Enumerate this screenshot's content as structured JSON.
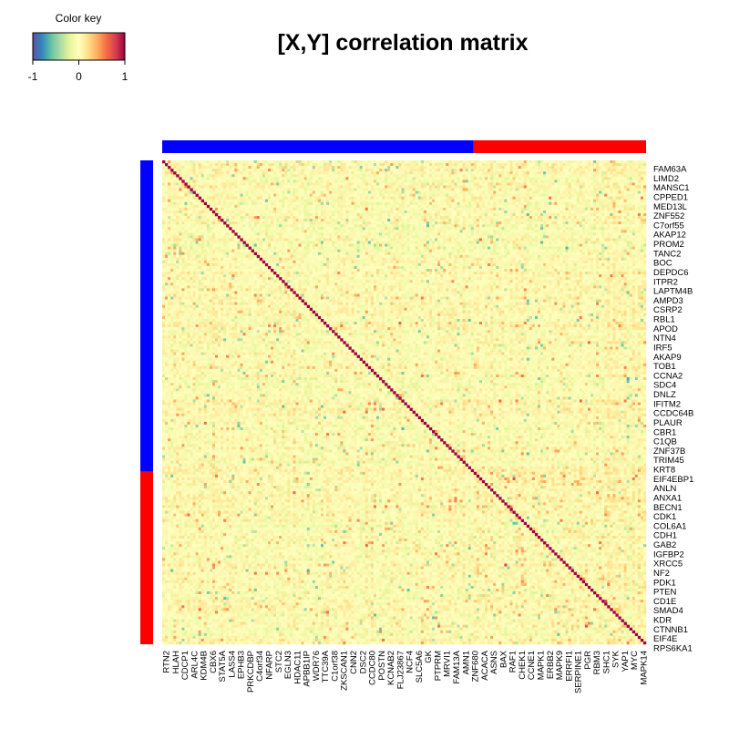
{
  "chart_data": {
    "type": "heatmap",
    "title": "[X,Y] correlation matrix",
    "color_key": {
      "title": "Color key",
      "ticks": [
        "-1",
        "0",
        "1"
      ],
      "range": [
        -1,
        1
      ],
      "palette": [
        "#5e4fa2",
        "#3288bd",
        "#66c2a5",
        "#abdda4",
        "#e6f598",
        "#ffffbf",
        "#fee08b",
        "#fdae61",
        "#f46d43",
        "#d53e4f",
        "#9e0142"
      ]
    },
    "group_colors": {
      "group_1": "#0000ff",
      "group_2": "#ff0000"
    },
    "group_sizes": [
      112,
      62
    ],
    "diagonal_value": 1,
    "row_labels": [
      "FAM63A",
      "LIMD2",
      "MANSC1",
      "CPPED1",
      "MED13L",
      "ZNF552",
      "C7orf55",
      "AKAP12",
      "PROM2",
      "TANC2",
      "BOC",
      "DEPDC6",
      "ITPR2",
      "LAPTM4B",
      "AMPD3",
      "CSRP2",
      "RBL1",
      "APOD",
      "NTN4",
      "IRF5",
      "AKAP9",
      "TOB1",
      "CCNA2",
      "SDC4",
      "DNLZ",
      "IFITM2",
      "CCDC64B",
      "PLAUR",
      "CBR1",
      "C1QB",
      "ZNF37B",
      "TRIM45",
      "KRT8",
      "EIF4EBP1",
      "ANLN",
      "ANXA1",
      "BECN1",
      "CDK1",
      "COL6A1",
      "CDH1",
      "GAB2",
      "IGFBP2",
      "XRCC5",
      "NF2",
      "PDK1",
      "PTEN",
      "CD1E",
      "SMAD4",
      "KDR",
      "CTNNB1",
      "EIF4E",
      "RPS6KA1"
    ],
    "col_labels": [
      "RTN2",
      "HLAH",
      "CDCP1",
      "ARL4C",
      "KDM4B",
      "CBX6",
      "STAT5A",
      "LASS4",
      "EPHB3",
      "PRKCDBP",
      "C4orf34",
      "NFARP",
      "STC2",
      "EGLN3",
      "HDAC11",
      "APBB1IP",
      "WDR76",
      "TTC39A",
      "C1orf38",
      "ZKSCAN1",
      "CNN2",
      "DSC2",
      "CCDC80",
      "POSTN",
      "KCNAB2",
      "FLJ23867",
      "NCF4",
      "SLC5A6",
      "GK",
      "PTPRM",
      "MRVI1",
      "FAM13A",
      "AMN1",
      "ZNF680",
      "ACACA",
      "ASNS",
      "BAX",
      "RAF1",
      "CHEK1",
      "CCNE1",
      "MAPK1",
      "ERBB2",
      "MAPK9",
      "ERRFI1",
      "SERPINE1",
      "PGR",
      "RBM3",
      "SHC1",
      "SYK",
      "YAP1",
      "MYC",
      "MAPK14"
    ]
  }
}
